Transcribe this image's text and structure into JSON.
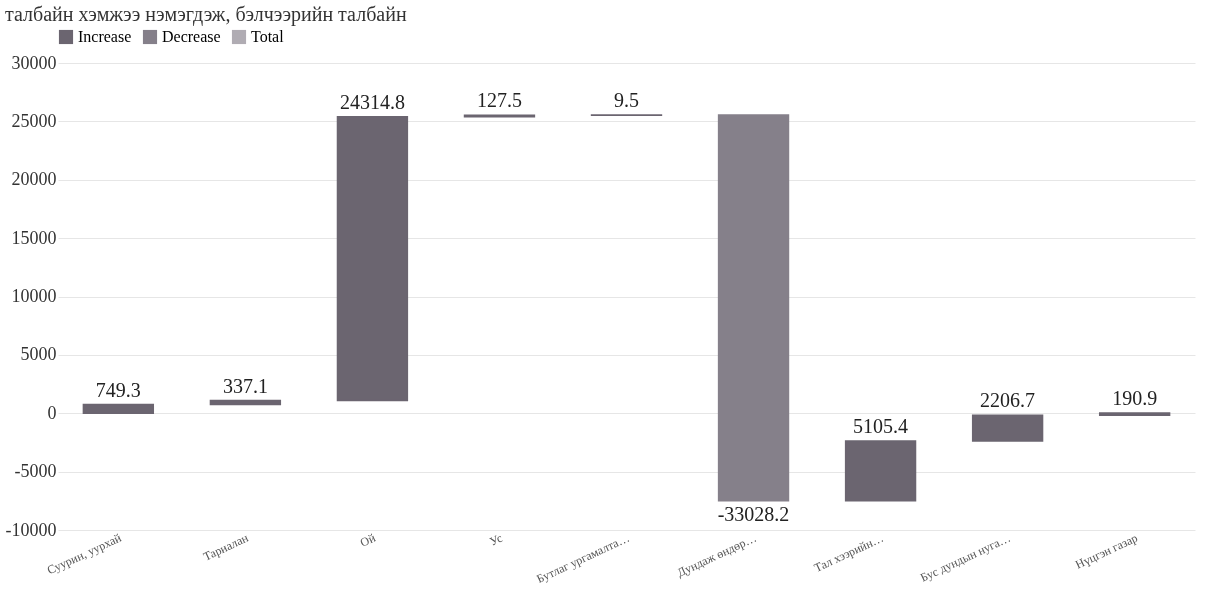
{
  "chart_data": {
    "type": "bar",
    "annotations": [
      "талбайн хэмжээ нэмэгдэж, бэлчээрийн талбайн"
    ],
    "categories": [
      "Суурин, уурхай",
      "Тариалан",
      "Ой",
      "Ус",
      "Бутлаг ургамалта…",
      "Дундаж өндөр…",
      "Тал хээрийн…",
      "Бус дундын нуга…",
      "Нүцгэн газар"
    ],
    "base": [
      0,
      749.3,
      1086.4,
      25401.2,
      25528.7,
      25538.2,
      -7490.0,
      -2384.6,
      -177.9
    ],
    "values": [
      749.3,
      337.1,
      24314.8,
      127.5,
      9.5,
      -33028.2,
      5105.4,
      2206.7,
      190.9
    ],
    "colors": [
      "#6b6570",
      "#6b6570",
      "#6b6570",
      "#6b6570",
      "#6b6570",
      "#85808a",
      "#6b6570",
      "#6b6570",
      "#6b6570"
    ],
    "series": [
      {
        "name": "Increase",
        "color": "#6b6570",
        "values": [
          null,
          null,
          null,
          null,
          null,
          null,
          null,
          null,
          null
        ]
      },
      {
        "name": "Decrease",
        "color": "#85808a",
        "values": [
          null,
          null,
          null,
          null,
          null,
          null,
          null,
          null,
          null
        ]
      },
      {
        "name": "Total",
        "color": "#b0acb3",
        "values": [
          null,
          null,
          null,
          null,
          null,
          null,
          null,
          null,
          null
        ]
      }
    ],
    "data_labels": true,
    "ylim": [
      -10000,
      30000
    ],
    "yticks": [
      -10000,
      -5000,
      0,
      5000,
      10000,
      15000,
      20000,
      25000,
      30000
    ],
    "grid": "y",
    "legend": "top"
  }
}
